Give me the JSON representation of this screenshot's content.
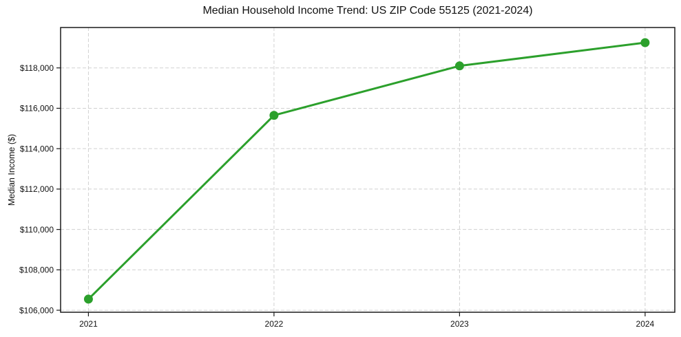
{
  "chart_data": {
    "type": "line",
    "title": "Median Household Income Trend: US ZIP Code 55125 (2021-2024)",
    "xlabel": "",
    "ylabel": "Median Income ($)",
    "x": [
      2021,
      2022,
      2023,
      2024
    ],
    "xtick_labels": [
      "2021",
      "2022",
      "2023",
      "2024"
    ],
    "values": [
      106550,
      115650,
      118100,
      119250
    ],
    "yticks": [
      106000,
      108000,
      110000,
      112000,
      114000,
      116000,
      118000
    ],
    "ytick_labels": [
      "$106,000",
      "$108,000",
      "$110,000",
      "$112,000",
      "$114,000",
      "$116,000",
      "$118,000"
    ],
    "xlim": [
      2020.85,
      2024.16
    ],
    "ylim": [
      105900,
      120000
    ],
    "grid": true,
    "grid_style": "dashed",
    "legend_position": "none",
    "marker": "circle",
    "colors": {
      "line": "#2ca02c",
      "marker": "#2ca02c",
      "grid": "#d0d0d0",
      "axis": "#1a1a1a",
      "text": "#111111",
      "background": "#ffffff"
    }
  }
}
